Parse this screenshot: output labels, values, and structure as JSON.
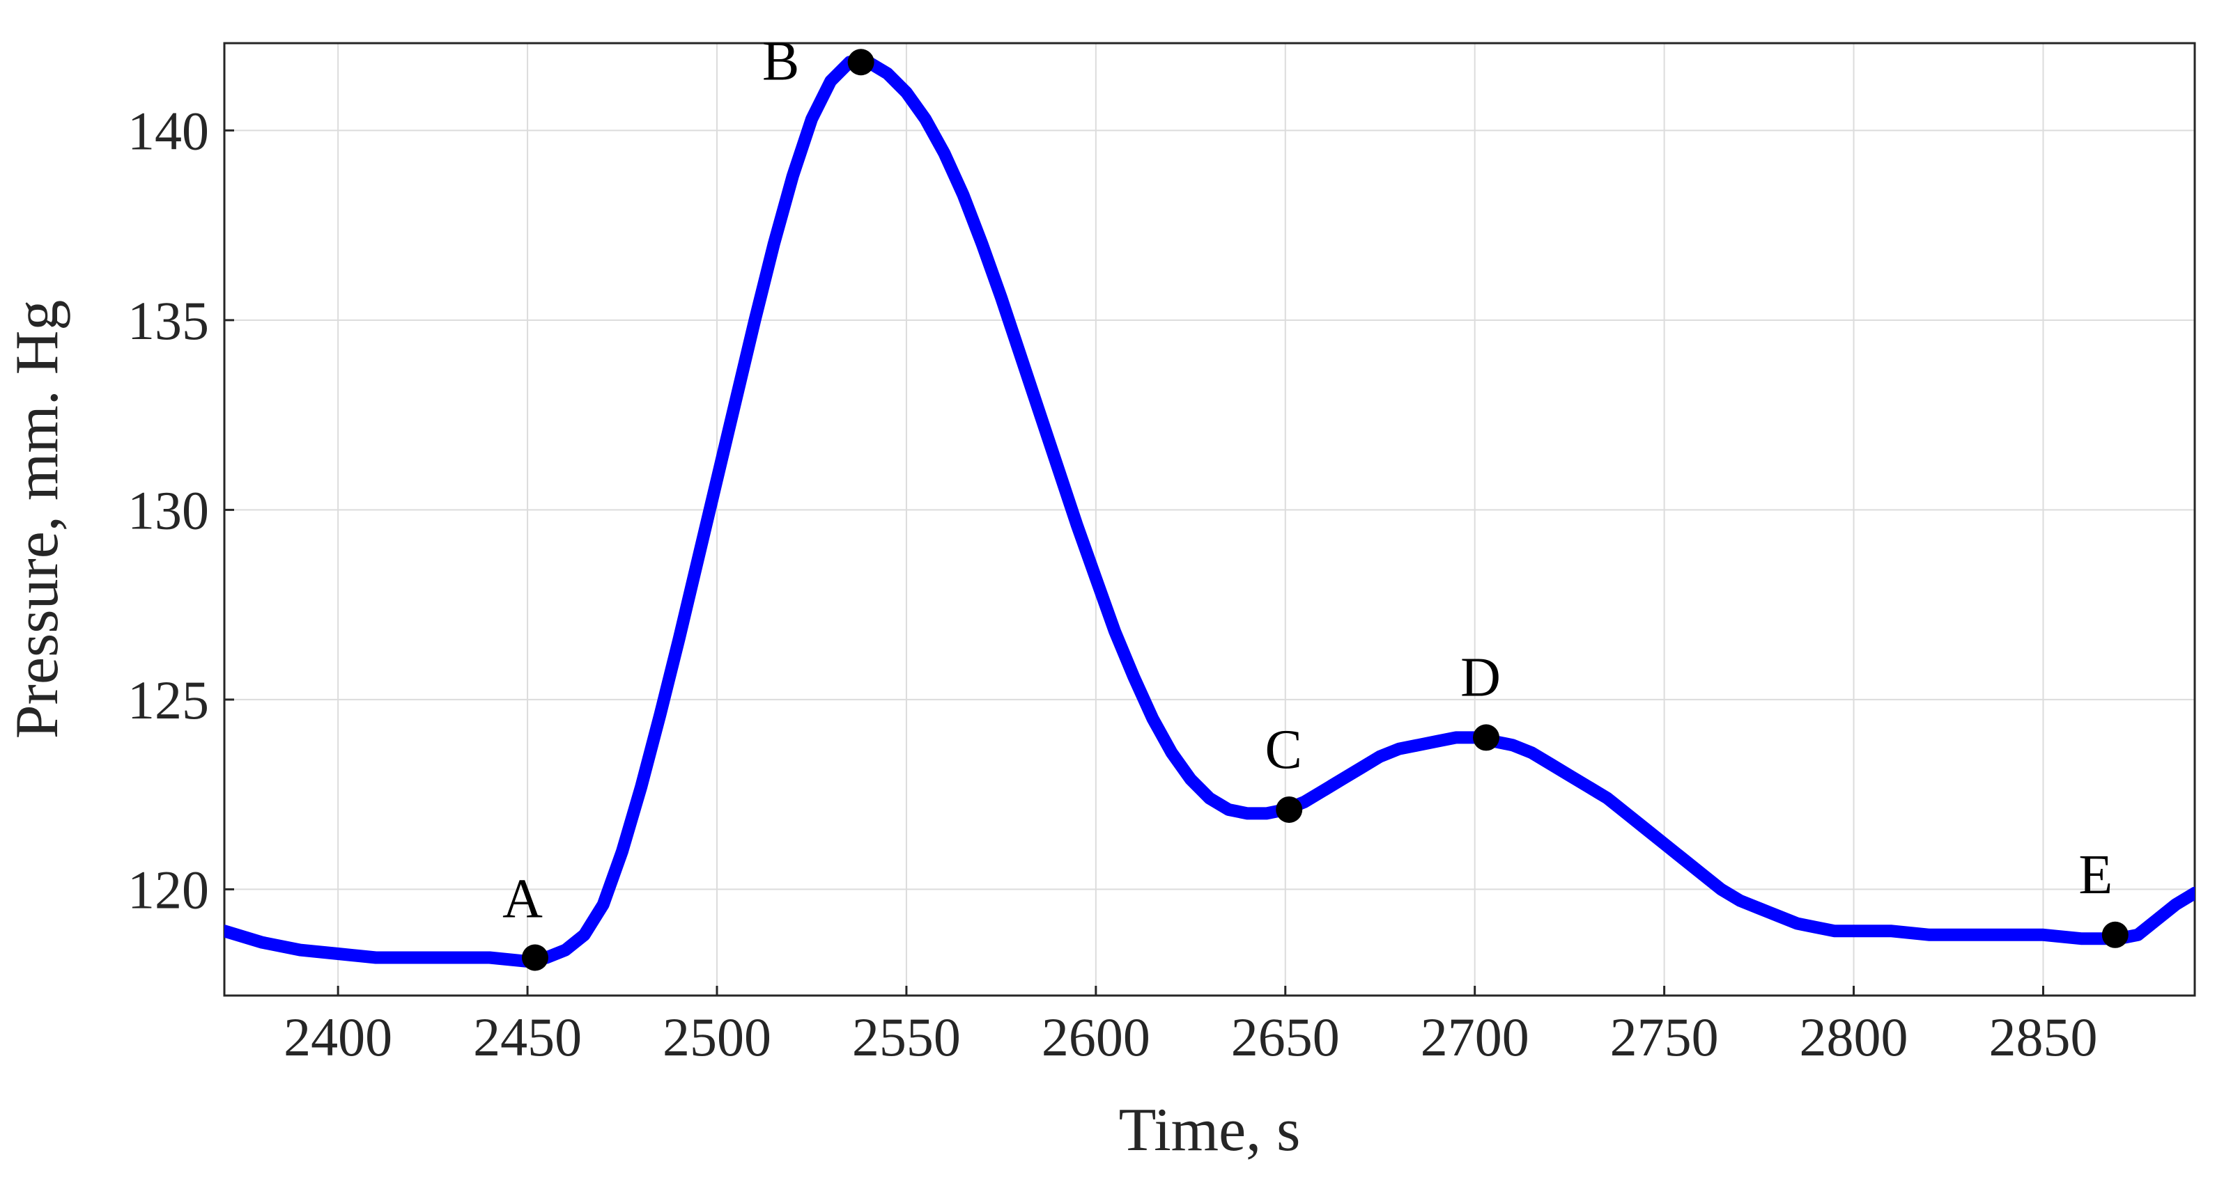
{
  "chart_data": {
    "type": "line",
    "title": "",
    "xlabel": "Time, s",
    "ylabel": "Pressure, mm. Hg",
    "xlim": [
      2370,
      2890
    ],
    "ylim": [
      117.2,
      142.3
    ],
    "xticks": [
      2400,
      2450,
      2500,
      2550,
      2600,
      2650,
      2700,
      2750,
      2800,
      2850
    ],
    "yticks": [
      120,
      125,
      130,
      135,
      140
    ],
    "grid": true,
    "legend": "none",
    "series": [
      {
        "color": "#0000ff",
        "x": [
          2370,
          2380,
          2390,
          2400,
          2410,
          2420,
          2430,
          2440,
          2450,
          2455,
          2460,
          2465,
          2470,
          2475,
          2480,
          2485,
          2490,
          2495,
          2500,
          2505,
          2510,
          2515,
          2520,
          2525,
          2530,
          2535,
          2540,
          2545,
          2550,
          2555,
          2560,
          2565,
          2570,
          2575,
          2580,
          2585,
          2590,
          2595,
          2600,
          2605,
          2610,
          2615,
          2620,
          2625,
          2630,
          2635,
          2640,
          2645,
          2650,
          2655,
          2660,
          2665,
          2670,
          2675,
          2680,
          2685,
          2690,
          2695,
          2700,
          2705,
          2710,
          2715,
          2720,
          2725,
          2730,
          2735,
          2740,
          2745,
          2750,
          2755,
          2760,
          2765,
          2770,
          2775,
          2780,
          2785,
          2790,
          2795,
          2800,
          2810,
          2820,
          2830,
          2840,
          2850,
          2860,
          2865,
          2870,
          2875,
          2880,
          2885,
          2890
        ],
        "y": [
          118.9,
          118.6,
          118.4,
          118.3,
          118.2,
          118.2,
          118.2,
          118.2,
          118.1,
          118.2,
          118.4,
          118.8,
          119.6,
          121.0,
          122.7,
          124.6,
          126.6,
          128.7,
          130.8,
          132.9,
          135.0,
          137.0,
          138.8,
          140.3,
          141.3,
          141.8,
          141.8,
          141.5,
          141.0,
          140.3,
          139.4,
          138.3,
          137.0,
          135.6,
          134.1,
          132.6,
          131.1,
          129.6,
          128.2,
          126.8,
          125.6,
          124.5,
          123.6,
          122.9,
          122.4,
          122.1,
          122.0,
          122.0,
          122.1,
          122.3,
          122.6,
          122.9,
          123.2,
          123.5,
          123.7,
          123.8,
          123.9,
          124.0,
          124.0,
          123.9,
          123.8,
          123.6,
          123.3,
          123.0,
          122.7,
          122.4,
          122.0,
          121.6,
          121.2,
          120.8,
          120.4,
          120.0,
          119.7,
          119.5,
          119.3,
          119.1,
          119.0,
          118.9,
          118.9,
          118.9,
          118.8,
          118.8,
          118.8,
          118.8,
          118.7,
          118.7,
          118.7,
          118.8,
          119.2,
          119.6,
          119.9
        ]
      }
    ],
    "points": [
      {
        "label": "A",
        "x": 2452,
        "y": 118.2
      },
      {
        "label": "B",
        "x": 2538,
        "y": 141.8
      },
      {
        "label": "C",
        "x": 2651,
        "y": 122.1
      },
      {
        "label": "D",
        "x": 2703,
        "y": 124.0
      },
      {
        "label": "E",
        "x": 2869,
        "y": 118.8
      }
    ]
  }
}
